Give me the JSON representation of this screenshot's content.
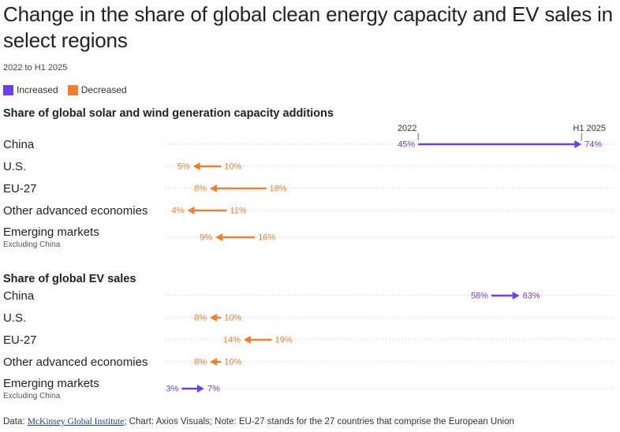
{
  "title": "Change in the share of global clean energy capacity and EV sales in select regions",
  "subtitle": "2022 to H1 2025",
  "legend": {
    "increased": "Increased",
    "decreased": "Decreased"
  },
  "colors": {
    "increased": "#6b3ef0",
    "decreased": "#f57c2c",
    "gridline": "#cccccc"
  },
  "column_headers": {
    "start": "2022",
    "end": "H1 2025"
  },
  "chart_data": [
    {
      "type": "arrow",
      "title": "Share of global solar and wind generation capacity additions",
      "xlim": [
        0,
        80
      ],
      "unit": "%",
      "rows": [
        {
          "region": "China",
          "note": "",
          "start": 45,
          "end": 74
        },
        {
          "region": "U.S.",
          "note": "",
          "start": 10,
          "end": 5
        },
        {
          "region": "EU-27",
          "note": "",
          "start": 18,
          "end": 8
        },
        {
          "region": "Other advanced economies",
          "note": "",
          "start": 11,
          "end": 4
        },
        {
          "region": "Emerging markets",
          "note": "Excluding China",
          "start": 16,
          "end": 9
        }
      ]
    },
    {
      "type": "arrow",
      "title": "Share of global EV sales",
      "xlim": [
        0,
        80
      ],
      "unit": "%",
      "rows": [
        {
          "region": "China",
          "note": "",
          "start": 58,
          "end": 63
        },
        {
          "region": "U.S.",
          "note": "",
          "start": 10,
          "end": 8
        },
        {
          "region": "EU-27",
          "note": "",
          "start": 19,
          "end": 14
        },
        {
          "region": "Other advanced economies",
          "note": "",
          "start": 10,
          "end": 8
        },
        {
          "region": "Emerging markets",
          "note": "Excluding China",
          "start": 3,
          "end": 7
        }
      ]
    }
  ],
  "footer": {
    "data_prefix": "Data: ",
    "source_link": "McKinsey Global Institute",
    "rest": "; Chart: Axios Visuals; Note: EU-27 stands for the 27 countries that comprise the European Union"
  }
}
